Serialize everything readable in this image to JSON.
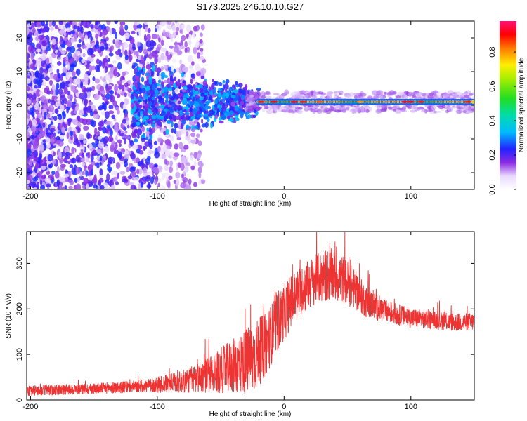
{
  "title": "S173.2025.246.10.10.G27",
  "chart_data": [
    {
      "type": "heatmap",
      "name": "spectrogram",
      "xlabel": "Height of straight line (km)",
      "ylabel": "Frequency (Hz)",
      "xlim": [
        -203,
        150
      ],
      "ylim": [
        -25,
        25
      ],
      "x_ticks": [
        -200,
        -100,
        0,
        100
      ],
      "y_ticks": [
        -20,
        -10,
        0,
        10,
        20
      ],
      "ridge": {
        "frequency_hz": 1,
        "from_height_km": -20,
        "to_height_km": 150,
        "label": "dominant ~1 Hz line, amplitude up to ~1.0 near 10 km and 100 km"
      },
      "scatter_region": {
        "from_height_km": -203,
        "to_height_km": -100,
        "frequency_spread_hz": [
          -25,
          25
        ],
        "typical_amplitude": 0.2
      },
      "colorbar": {
        "label": "Normalized spectral amplitude",
        "range": [
          0.0,
          0.98
        ],
        "ticks": [
          0.0,
          0.2,
          0.4,
          0.6,
          0.8
        ],
        "tick_labels": [
          "0.0",
          "0.2",
          "0.4",
          "0.6",
          "0.8"
        ]
      }
    },
    {
      "type": "line",
      "name": "snr",
      "xlabel": "Height of straight line (km)",
      "ylabel": "SNR (10 * v/v)",
      "xlim": [
        -203,
        150
      ],
      "ylim": [
        0,
        370
      ],
      "x_ticks": [
        -200,
        -100,
        0,
        100
      ],
      "y_ticks": [
        0,
        100,
        200,
        300
      ],
      "series": [
        {
          "name": "SNR",
          "color": "#ee3333",
          "envelope_x": [
            -203,
            -150,
            -110,
            -80,
            -60,
            -40,
            -25,
            -15,
            -5,
            5,
            15,
            25,
            35,
            45,
            55,
            65,
            80,
            100,
            120,
            135,
            150
          ],
          "envelope_mean": [
            20,
            25,
            30,
            40,
            55,
            75,
            90,
            120,
            170,
            215,
            245,
            265,
            275,
            268,
            245,
            215,
            195,
            180,
            175,
            170,
            172
          ],
          "envelope_amplitude": [
            12,
            12,
            14,
            25,
            40,
            60,
            80,
            70,
            65,
            60,
            55,
            55,
            60,
            55,
            45,
            35,
            25,
            22,
            20,
            20,
            20
          ]
        }
      ]
    }
  ],
  "colors": {
    "ridge_red": "#ff0000",
    "ridge_green": "#33ee44",
    "scatter_purple": "#7722ee",
    "line_red": "#ee3333"
  }
}
